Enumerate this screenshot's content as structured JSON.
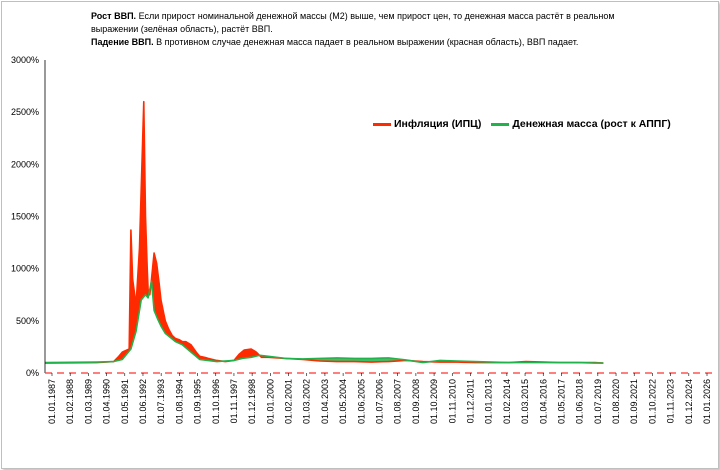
{
  "notes": {
    "growth_title": "Рост ВВП.",
    "growth_text": "Если прирост номинальной денежной массы (М2) выше, чем прирост цен,  то денежная масса растёт в реальном выражении (зелёная область), растёт ВВП.",
    "decline_title": "Падение ВВП.",
    "decline_text": "В противном случае денежная масса падает в реальном выражении (красная область), ВВП падает."
  },
  "colors": {
    "inflation": "#ff2a00",
    "money": "#22b24c",
    "axis_dash": "#ff3030"
  },
  "chart_data": {
    "type": "area",
    "title": "",
    "xlabel": "",
    "ylabel": "",
    "ylim": [
      0,
      3000
    ],
    "y_ticks": [
      "0%",
      "500%",
      "1000%",
      "1500%",
      "2000%",
      "2500%",
      "3000%"
    ],
    "x_ticks": [
      "01.01.1987",
      "01.02.1988",
      "01.03.1989",
      "01.04.1990",
      "01.05.1991",
      "01.06.1992",
      "01.07.1993",
      "01.08.1994",
      "01.09.1995",
      "01.10.1996",
      "01.11.1997",
      "01.12.1998",
      "01.01.2000",
      "01.02.2001",
      "01.03.2002",
      "01.04.2003",
      "01.05.2004",
      "01.06.2005",
      "01.07.2006",
      "01.08.2007",
      "01.09.2008",
      "01.10.2009",
      "01.11.2010",
      "01.12.2011",
      "01.01.2013",
      "01.02.2014",
      "01.03.2015",
      "01.04.2016",
      "01.05.2017",
      "01.06.2018",
      "01.07.2019",
      "01.08.2020",
      "01.09.2021",
      "01.10.2022",
      "01.11.2023",
      "01.12.2024",
      "01.01.2026"
    ],
    "grid": false,
    "legend": "top-right",
    "series": [
      {
        "name": "Инфляция (ИПЦ)",
        "color": "#ff2a00",
        "x": [
          1987.0,
          1990.0,
          1991.0,
          1991.3,
          1991.5,
          1991.9,
          1992.0,
          1992.1,
          1992.3,
          1992.5,
          1992.75,
          1992.85,
          1992.95,
          1993.0,
          1993.1,
          1993.2,
          1993.35,
          1993.5,
          1993.65,
          1993.75,
          1993.9,
          1994.0,
          1994.2,
          1994.4,
          1994.6,
          1994.8,
          1995.0,
          1995.2,
          1995.5,
          1995.8,
          1996.0,
          1996.3,
          1996.5,
          1997.0,
          1997.5,
          1998.0,
          1998.3,
          1998.6,
          1999.0,
          1999.3,
          1999.6,
          2000.0,
          2001.0,
          2002.0,
          2003.0,
          2004.0,
          2005.0,
          2006.0,
          2007.0,
          2008.0,
          2009.0,
          2010.0,
          2011.0,
          2012.0,
          2013.0,
          2014.0,
          2015.0,
          2016.0,
          2017.0,
          2018.0,
          2019.0,
          2019.5
        ],
        "y": [
          95,
          100,
          110,
          160,
          200,
          230,
          1370,
          900,
          650,
          1200,
          2600,
          1500,
          1000,
          800,
          750,
          900,
          1150,
          1050,
          850,
          700,
          580,
          500,
          420,
          360,
          330,
          320,
          300,
          300,
          270,
          200,
          160,
          150,
          140,
          120,
          110,
          120,
          180,
          220,
          230,
          200,
          150,
          150,
          140,
          130,
          115,
          110,
          110,
          105,
          110,
          120,
          110,
          105,
          105,
          100,
          100,
          100,
          110,
          105,
          100,
          100,
          100,
          95
        ]
      },
      {
        "name": "Денежная масса (рост к АППГ)",
        "color": "#22b24c",
        "x": [
          1987.0,
          1990.0,
          1991.0,
          1991.5,
          1992.0,
          1992.3,
          1992.6,
          1992.85,
          1993.0,
          1993.2,
          1993.35,
          1993.55,
          1993.75,
          1994.0,
          1994.3,
          1994.6,
          1995.0,
          1995.5,
          1996.0,
          1997.0,
          1998.0,
          1998.5,
          1999.0,
          1999.5,
          2000.0,
          2001.0,
          2002.0,
          2003.0,
          2004.0,
          2005.0,
          2006.0,
          2007.0,
          2008.0,
          2009.0,
          2010.0,
          2011.0,
          2012.0,
          2013.0,
          2014.0,
          2015.0,
          2016.0,
          2017.0,
          2018.0,
          2019.0,
          2019.5
        ],
        "y": [
          100,
          105,
          110,
          130,
          230,
          400,
          700,
          750,
          720,
          880,
          600,
          520,
          450,
          380,
          340,
          300,
          270,
          200,
          130,
          110,
          120,
          140,
          150,
          170,
          160,
          140,
          135,
          140,
          145,
          140,
          140,
          145,
          125,
          100,
          120,
          115,
          110,
          105,
          100,
          100,
          100,
          100,
          100,
          95,
          95
        ]
      }
    ]
  }
}
